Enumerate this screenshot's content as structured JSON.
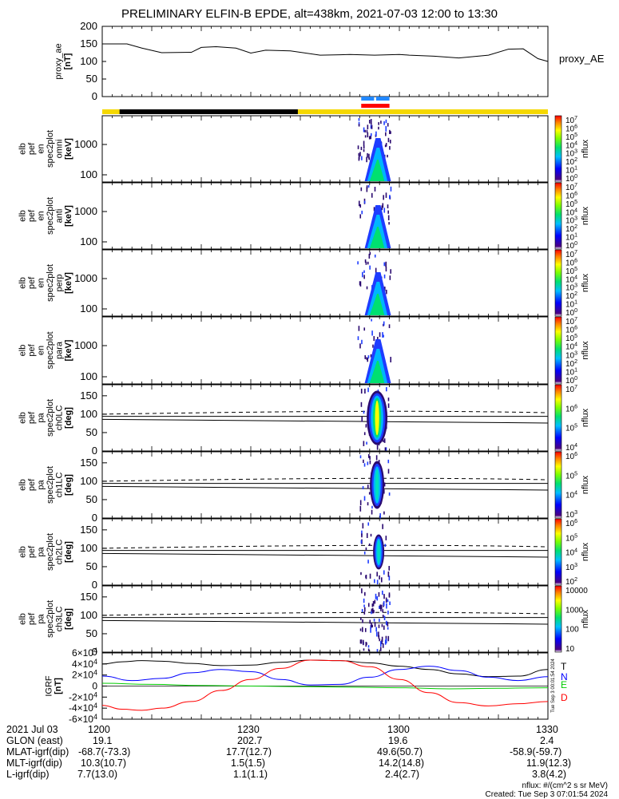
{
  "title": "PRELIMINARY ELFIN-B EPDE, alt=438km, 2021-07-03 12:00 to 13:30",
  "chart_data": [
    {
      "type": "line",
      "panel": "proxy_ae",
      "ylabel": [
        "proxy_ae",
        "[nT]"
      ],
      "legend": "proxy_AE",
      "ylim": [
        0,
        200
      ],
      "yticks": [
        0,
        50,
        100,
        150,
        200
      ],
      "series": [
        {
          "name": "proxy_AE",
          "x": [
            0,
            5,
            8,
            12,
            18,
            20,
            23,
            27,
            30,
            33,
            38,
            44,
            48,
            50,
            55,
            60,
            62,
            67,
            72,
            78,
            82,
            85,
            88,
            90
          ],
          "y": [
            150,
            150,
            138,
            125,
            126,
            140,
            142,
            138,
            124,
            132,
            130,
            118,
            119,
            120,
            118,
            120,
            118,
            115,
            110,
            118,
            135,
            136,
            108,
            100
          ]
        }
      ]
    },
    {
      "type": "heatmap",
      "panel": "omni",
      "ylabel": [
        "elb",
        "pef",
        "en",
        "spec2plot",
        "omni",
        "[keV]"
      ],
      "yticks": [
        "100",
        "1000"
      ],
      "colorbar": {
        "label": "nflux",
        "ticks": [
          "10^7",
          "10^6",
          "10^5",
          "10^4",
          "10^3",
          "10^2",
          "10^1",
          "10^0"
        ]
      }
    },
    {
      "type": "heatmap",
      "panel": "anti",
      "ylabel": [
        "elb",
        "pef",
        "en",
        "spec2plot",
        "anti",
        "[keV]"
      ],
      "yticks": [
        "100",
        "1000"
      ],
      "colorbar": {
        "label": "nflux",
        "ticks": [
          "10^7",
          "10^6",
          "10^5",
          "10^4",
          "10^3",
          "10^2",
          "10^1",
          "10^0"
        ]
      }
    },
    {
      "type": "heatmap",
      "panel": "perp",
      "ylabel": [
        "elb",
        "pef",
        "en",
        "spec2plot",
        "perp",
        "[keV]"
      ],
      "yticks": [
        "100",
        "1000"
      ],
      "colorbar": {
        "label": "nflux",
        "ticks": [
          "10^7",
          "10^6",
          "10^5",
          "10^4",
          "10^3",
          "10^2",
          "10^1",
          "10^0"
        ]
      }
    },
    {
      "type": "heatmap",
      "panel": "para",
      "ylabel": [
        "elb",
        "pef",
        "en",
        "spec2plot",
        "para",
        "[keV]"
      ],
      "yticks": [
        "100",
        "1000"
      ],
      "colorbar": {
        "label": "nflux",
        "ticks": [
          "10^7",
          "10^6",
          "10^5",
          "10^4",
          "10^3",
          "10^2",
          "10^1",
          "10^0"
        ]
      }
    },
    {
      "type": "heatmap",
      "panel": "ch0LC",
      "ylabel": [
        "elb",
        "pef",
        "pa",
        "spec2plot",
        "ch0LC",
        "[deg]"
      ],
      "yticks": [
        "0",
        "50",
        "100",
        "150"
      ],
      "colorbar": {
        "label": "nflux",
        "ticks": [
          "10^7",
          "10^6",
          "10^5",
          "10^4"
        ]
      }
    },
    {
      "type": "heatmap",
      "panel": "ch1LC",
      "ylabel": [
        "elb",
        "pef",
        "pa",
        "spec2plot",
        "ch1LC",
        "[deg]"
      ],
      "yticks": [
        "0",
        "50",
        "100",
        "150"
      ],
      "colorbar": {
        "label": "nflux",
        "ticks": [
          "10^6",
          "10^5",
          "10^4",
          "10^3"
        ]
      }
    },
    {
      "type": "heatmap",
      "panel": "ch2LC",
      "ylabel": [
        "elb",
        "pef",
        "pa",
        "spec2plot",
        "ch2LC",
        "[deg]"
      ],
      "yticks": [
        "0",
        "50",
        "100",
        "150"
      ],
      "colorbar": {
        "label": "nflux",
        "ticks": [
          "10^6",
          "10^5",
          "10^4",
          "10^3",
          "10^2"
        ]
      }
    },
    {
      "type": "heatmap",
      "panel": "ch3LC",
      "ylabel": [
        "elb",
        "pef",
        "pa",
        "spec2plot",
        "ch3LC",
        "[deg]"
      ],
      "yticks": [
        "0",
        "50",
        "100",
        "150"
      ],
      "colorbar": {
        "label": "nflux",
        "ticks": [
          "10000",
          "1000",
          "100",
          "10"
        ]
      }
    },
    {
      "type": "line",
      "panel": "IGRF",
      "ylabel": [
        "IGRF",
        "[nT]"
      ],
      "ylim": [
        -60000,
        60000
      ],
      "yticks": [
        "6x10^4",
        "4x10^4",
        "2x10^4",
        "0",
        "-2x10^4",
        "-4x10^4",
        "-6x10^4"
      ],
      "series": [
        {
          "name": "T",
          "color": "#000000",
          "x": [
            0,
            4,
            8,
            12,
            18,
            24,
            30,
            36,
            42,
            48,
            54,
            60,
            66,
            72,
            78,
            84,
            90
          ],
          "y": [
            40000,
            44000,
            46000,
            45000,
            41000,
            37000,
            38000,
            43000,
            47000,
            46000,
            42000,
            36000,
            30000,
            22000,
            17000,
            18000,
            30000
          ]
        },
        {
          "name": "N",
          "color": "#0000ff",
          "x": [
            0,
            6,
            12,
            18,
            24,
            30,
            36,
            42,
            48,
            54,
            60,
            66,
            72,
            78,
            84,
            90
          ],
          "y": [
            18000,
            10000,
            14000,
            24000,
            30000,
            26000,
            12000,
            2000,
            3000,
            16000,
            30000,
            36000,
            28000,
            16000,
            10000,
            17000
          ]
        },
        {
          "name": "E",
          "color": "#00cc00",
          "x": [
            0,
            10,
            20,
            30,
            40,
            50,
            60,
            70,
            80,
            90
          ],
          "y": [
            5000,
            3000,
            1000,
            0,
            -1000,
            -2000,
            -3000,
            -5000,
            -4000,
            -3000
          ]
        },
        {
          "name": "D",
          "color": "#ff0000",
          "x": [
            0,
            4,
            8,
            12,
            18,
            24,
            30,
            36,
            42,
            48,
            54,
            60,
            66,
            72,
            78,
            84,
            90
          ],
          "y": [
            -35000,
            -42000,
            -44000,
            -40000,
            -28000,
            -8000,
            12000,
            32000,
            47000,
            46000,
            35000,
            12000,
            -12000,
            -30000,
            -36000,
            -32000,
            -28000
          ]
        }
      ]
    }
  ],
  "bars": {
    "black_bar": "ELFIN-B science-zone bar",
    "colors": {
      "yellow": "#f5d800",
      "black": "#000000",
      "red": "#ff0000",
      "blue": "#2288ff"
    }
  },
  "footer": {
    "rows": [
      {
        "label": "2021 Jul 03",
        "values": [
          "1200",
          "1230",
          "1300",
          "1330"
        ]
      },
      {
        "label": "GLON (east)",
        "values": [
          "19.1",
          "202.7",
          "19.6",
          "2.4"
        ]
      },
      {
        "label": "MLAT-igrf(dip)",
        "values": [
          "-68.7(-73.3)",
          "17.7(12.7)",
          "49.6(50.7)",
          "-58.9(-59.7)"
        ]
      },
      {
        "label": "MLT-igrf(dip)",
        "values": [
          "10.3(10.7)",
          "1.5(1.5)",
          "14.2(14.8)",
          "11.9(12.3)"
        ]
      },
      {
        "label": "L-igrf(dip)",
        "values": [
          "7.7(13.0)",
          "1.1(1.1)",
          "2.4(2.7)",
          "3.8(4.2)"
        ]
      }
    ],
    "nflux_units": "nflux: #/(cm^2 s sr MeV)",
    "created": "Created: Tue Sep  3 07:01:54 2024",
    "side_stamp": "Tue Sep  3 00:01:54 2024"
  }
}
